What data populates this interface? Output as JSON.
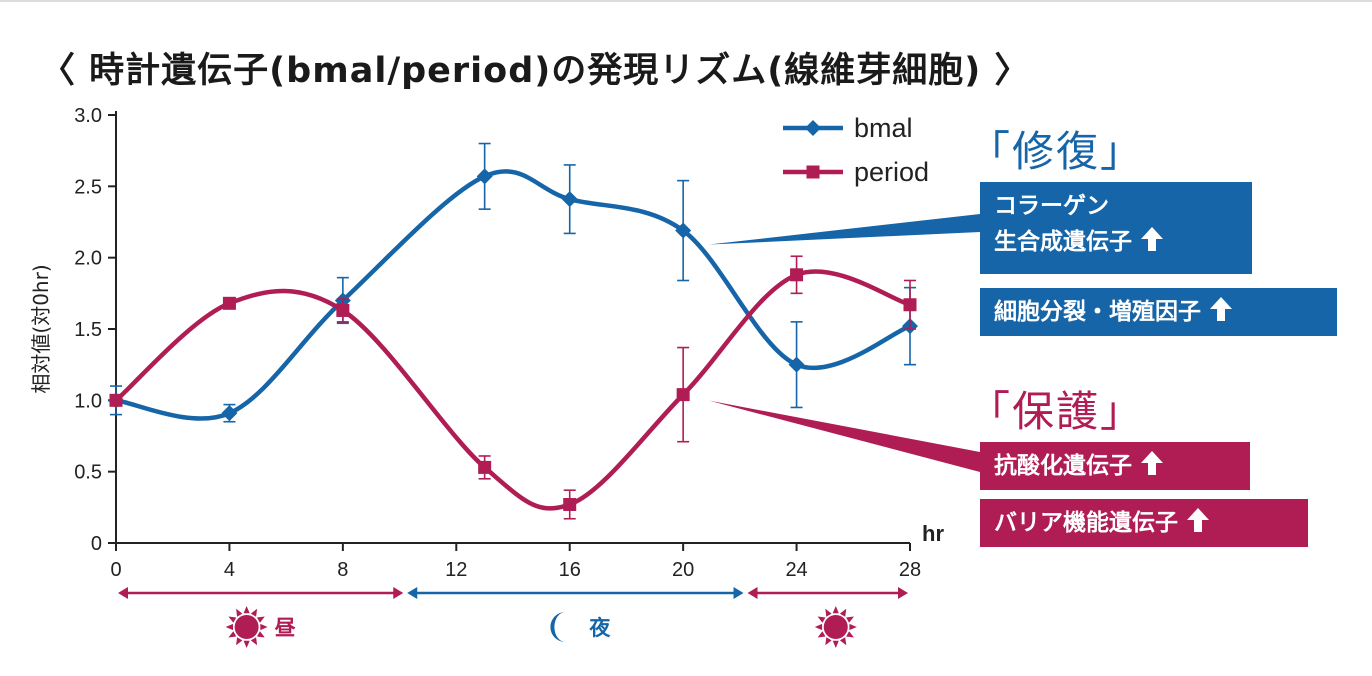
{
  "title": "〈 時計遺伝子(bmal/period)の発現リズム(線維芽細胞) 〉",
  "colors": {
    "bmal": "#1565a8",
    "period": "#b01d54",
    "axis": "#222222"
  },
  "chart_data": {
    "type": "line",
    "title": "時計遺伝子(bmal/period)の発現リズム(線維芽細胞)",
    "xlabel": "hr",
    "ylabel": "相対値(対0hr)",
    "xlim": [
      0,
      28
    ],
    "ylim": [
      0,
      3.0
    ],
    "xticks": [
      "0",
      "4",
      "8",
      "12",
      "16",
      "20",
      "24",
      "28"
    ],
    "yticks": [
      "0",
      "0.5",
      "1.0",
      "1.5",
      "2.0",
      "2.5",
      "3.0"
    ],
    "legend": "top-right",
    "series": [
      {
        "name": "bmal",
        "color": "#1565a8",
        "marker": "diamond",
        "x": [
          0,
          4,
          8,
          13,
          16,
          20,
          24,
          28
        ],
        "y": [
          1.0,
          0.91,
          1.7,
          2.57,
          2.41,
          2.19,
          1.25,
          1.52
        ],
        "err": [
          0.1,
          0.06,
          0.16,
          0.23,
          0.24,
          0.35,
          0.3,
          0.27
        ]
      },
      {
        "name": "period",
        "color": "#b01d54",
        "marker": "square",
        "x": [
          0,
          4,
          8,
          13,
          16,
          20,
          24,
          28
        ],
        "y": [
          1.0,
          1.68,
          1.63,
          0.53,
          0.27,
          1.04,
          1.88,
          1.67
        ],
        "err": [
          0.03,
          0.02,
          0.08,
          0.08,
          0.1,
          0.33,
          0.13,
          0.17
        ]
      }
    ],
    "periods": [
      {
        "label": "昼",
        "icon": "sun-icon",
        "from": 0,
        "to": 10.2,
        "color": "#b01d54"
      },
      {
        "label": "夜",
        "icon": "moon-icon",
        "from": 10.2,
        "to": 22.2,
        "color": "#1565a8"
      },
      {
        "label": "",
        "icon": "sun-icon",
        "from": 22.2,
        "to": 28,
        "color": "#b01d54"
      }
    ]
  },
  "annotations": {
    "repair": {
      "heading": "「修復」",
      "box1_line1": "コラーゲン",
      "box1_line2": "生合成遺伝子",
      "box2_line1": "細胞分裂・増殖因子"
    },
    "protect": {
      "heading": "「保護」",
      "box1_line1": "抗酸化遺伝子",
      "box2_line1": "バリア機能遺伝子"
    }
  }
}
